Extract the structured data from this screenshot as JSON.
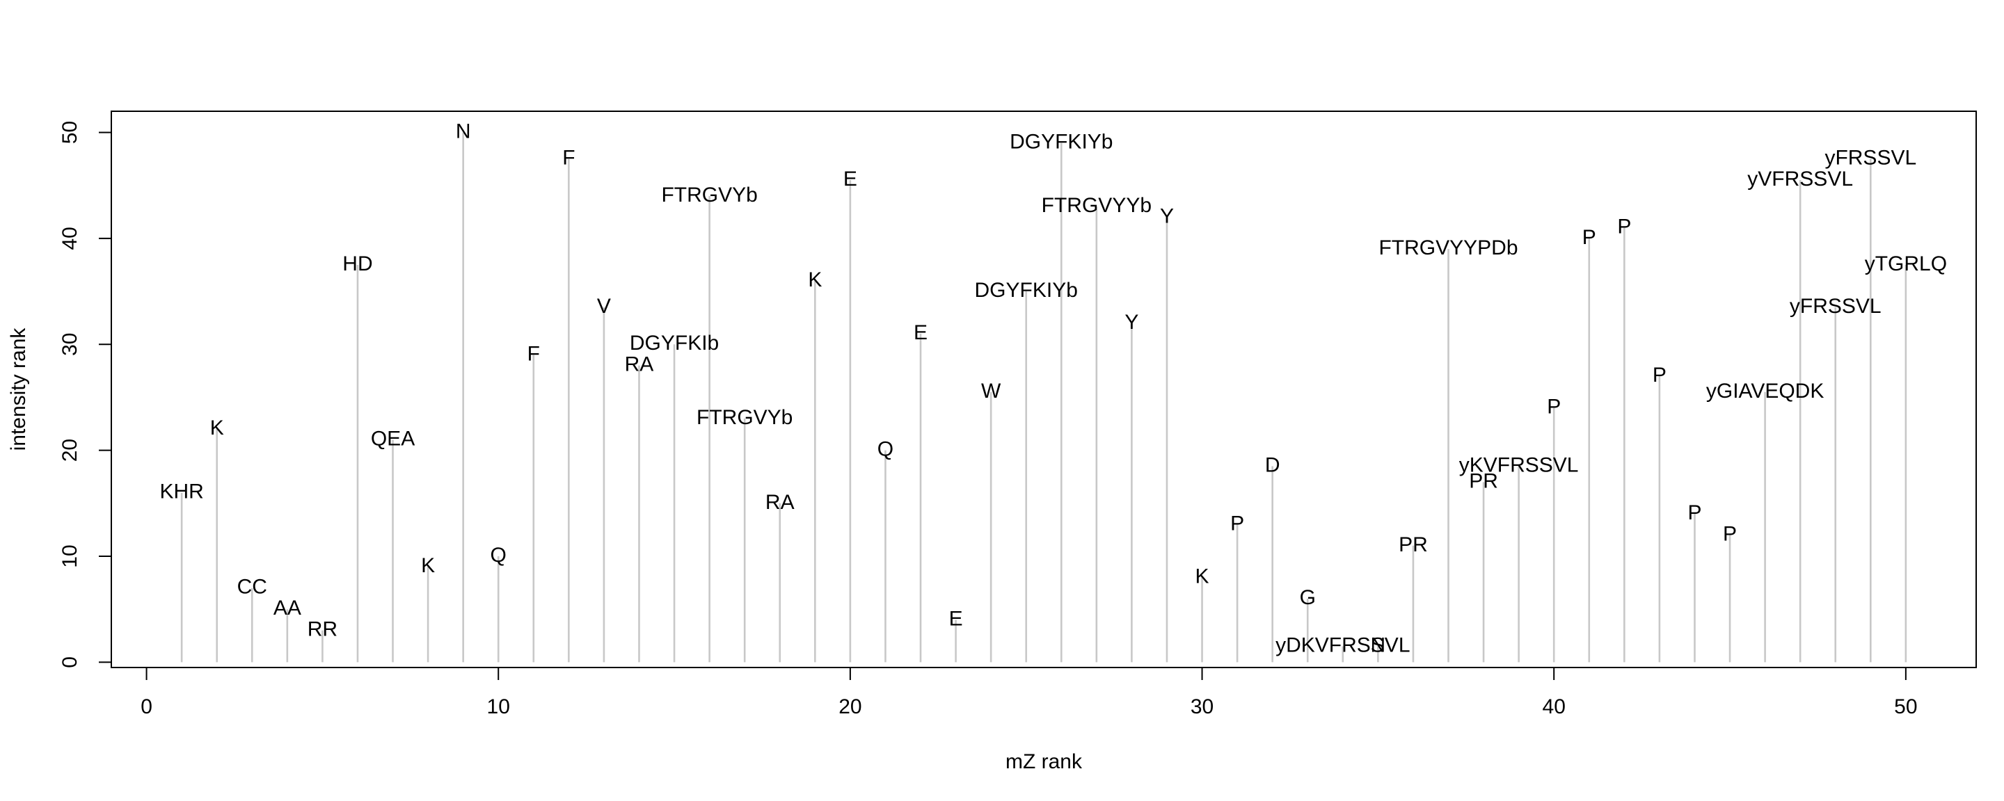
{
  "chart_data": {
    "type": "bar",
    "style": "vertical-stems",
    "xlabel": "mZ rank",
    "ylabel": "intensity rank",
    "xlim": [
      -1,
      52
    ],
    "ylim": [
      -0.5,
      52
    ],
    "xticks": [
      0,
      10,
      20,
      30,
      40,
      50
    ],
    "yticks": [
      0,
      10,
      20,
      30,
      40,
      50
    ],
    "grid": false,
    "stem_color": "#c8c8c8",
    "points": [
      {
        "x": 1,
        "y": 16,
        "label": "KHR"
      },
      {
        "x": 2,
        "y": 22,
        "label": "K"
      },
      {
        "x": 3,
        "y": 7,
        "label": "CC"
      },
      {
        "x": 4,
        "y": 5,
        "label": "AA"
      },
      {
        "x": 5,
        "y": 3,
        "label": "RR"
      },
      {
        "x": 6,
        "y": 37.5,
        "label": "HD"
      },
      {
        "x": 7,
        "y": 21,
        "label": "QEA"
      },
      {
        "x": 8,
        "y": 9,
        "label": "K"
      },
      {
        "x": 9,
        "y": 50,
        "label": "N"
      },
      {
        "x": 10,
        "y": 10,
        "label": "Q"
      },
      {
        "x": 11,
        "y": 29,
        "label": "F"
      },
      {
        "x": 12,
        "y": 47.5,
        "label": "F"
      },
      {
        "x": 13,
        "y": 33.5,
        "label": "V"
      },
      {
        "x": 14,
        "y": 28,
        "label": "RA"
      },
      {
        "x": 15,
        "y": 30,
        "label": "DGYFKIb"
      },
      {
        "x": 16,
        "y": 44,
        "label": "FTRGVYb"
      },
      {
        "x": 17,
        "y": 23,
        "label": "FTRGVYb"
      },
      {
        "x": 18,
        "y": 15,
        "label": "RA"
      },
      {
        "x": 19,
        "y": 36,
        "label": "K"
      },
      {
        "x": 20,
        "y": 45.5,
        "label": "E"
      },
      {
        "x": 21,
        "y": 20,
        "label": "Q"
      },
      {
        "x": 22,
        "y": 31,
        "label": "E"
      },
      {
        "x": 23,
        "y": 4,
        "label": "E"
      },
      {
        "x": 24,
        "y": 25.5,
        "label": "W"
      },
      {
        "x": 25,
        "y": 35,
        "label": "DGYFKIYb"
      },
      {
        "x": 26,
        "y": 49,
        "label": "DGYFKIYb"
      },
      {
        "x": 27,
        "y": 43,
        "label": "FTRGVYYb"
      },
      {
        "x": 28,
        "y": 32,
        "label": "Y"
      },
      {
        "x": 29,
        "y": 42,
        "label": "Y"
      },
      {
        "x": 30,
        "y": 8,
        "label": "K"
      },
      {
        "x": 31,
        "y": 13,
        "label": "P"
      },
      {
        "x": 32,
        "y": 18.5,
        "label": "D"
      },
      {
        "x": 33,
        "y": 6,
        "label": "G"
      },
      {
        "x": 34,
        "y": 1.5,
        "label": "yDKVFRSSVL"
      },
      {
        "x": 35,
        "y": 1.5,
        "label": "N"
      },
      {
        "x": 36,
        "y": 11,
        "label": "PR"
      },
      {
        "x": 37,
        "y": 39,
        "label": "FTRGVYYPDb"
      },
      {
        "x": 38,
        "y": 17,
        "label": "PR"
      },
      {
        "x": 39,
        "y": 18.5,
        "label": "yKVFRSSVL"
      },
      {
        "x": 40,
        "y": 24,
        "label": "P"
      },
      {
        "x": 41,
        "y": 40,
        "label": "P"
      },
      {
        "x": 42,
        "y": 41,
        "label": "P"
      },
      {
        "x": 43,
        "y": 27,
        "label": "P"
      },
      {
        "x": 44,
        "y": 14,
        "label": "P"
      },
      {
        "x": 45,
        "y": 12,
        "label": "P"
      },
      {
        "x": 46,
        "y": 25.5,
        "label": "yGIAVEQDK"
      },
      {
        "x": 47,
        "y": 45.5,
        "label": "yVFRSSVL"
      },
      {
        "x": 48,
        "y": 33.5,
        "label": "yFRSSVL"
      },
      {
        "x": 49,
        "y": 47.5,
        "label": "yFRSSVL"
      },
      {
        "x": 50,
        "y": 37.5,
        "label": "yTGRLQ"
      }
    ]
  }
}
